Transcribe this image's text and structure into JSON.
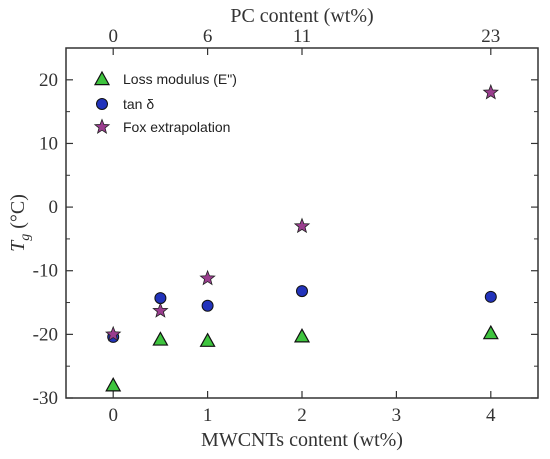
{
  "chart_data": {
    "type": "scatter",
    "xlabel": "MWCNTs content (wt%)",
    "ylabel_main": "T",
    "ylabel_sub": "g",
    "ylabel_units": " (°C)",
    "top_axis_label": "PC content (wt%)",
    "top_ticks": [
      {
        "x": 0,
        "label": "0"
      },
      {
        "x": 1,
        "label": "6"
      },
      {
        "x": 2,
        "label": "11"
      },
      {
        "x": 4,
        "label": "23"
      }
    ],
    "xlim": [
      -0.5,
      4.5
    ],
    "ylim": [
      -30,
      25
    ],
    "xticks": [
      0,
      1,
      2,
      3,
      4
    ],
    "yticks": [
      -30,
      -20,
      -10,
      0,
      10,
      20
    ],
    "legend_position": "top-left",
    "series": [
      {
        "name": "Loss modulus (E\")",
        "marker": "triangle",
        "color": "#3ec43e",
        "x": [
          0,
          0.5,
          1,
          2,
          4
        ],
        "y": [
          -28,
          -20.8,
          -21,
          -20.3,
          -19.8
        ]
      },
      {
        "name": "tan δ",
        "marker": "circle",
        "color": "#2233bb",
        "x": [
          0,
          0.5,
          1,
          2,
          4
        ],
        "y": [
          -20.4,
          -14.3,
          -15.5,
          -13.2,
          -14.1
        ]
      },
      {
        "name": "Fox extrapolation",
        "marker": "star",
        "color": "#9a3d8e",
        "x": [
          0,
          0.5,
          1,
          2,
          4
        ],
        "y": [
          -20,
          -16.3,
          -11.2,
          -3,
          18
        ]
      }
    ]
  }
}
